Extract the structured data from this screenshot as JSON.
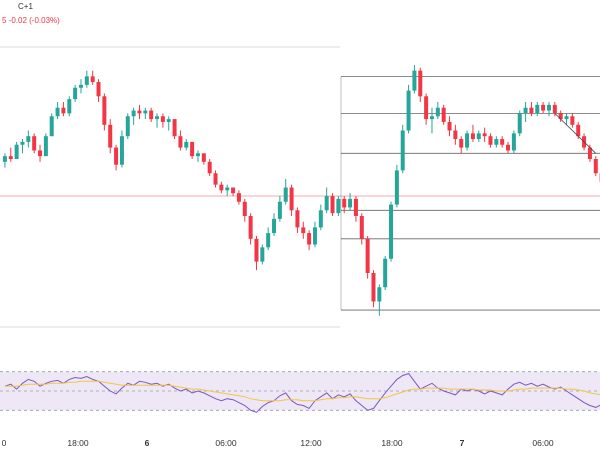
{
  "header": {
    "symbol_fragment": "C+1",
    "change_fragment": "5  -0.02 (-0.03%)"
  },
  "colors": {
    "up": "#26a69a",
    "down": "#f23645",
    "rsi_line": "#7e57c2",
    "rsi_ma": "#f5c542",
    "rsi_band": "#ede7f6",
    "fib_line": "#333333",
    "price_line": "#f7a8ae",
    "grid": "#e0e3eb"
  },
  "chart_data": [
    {
      "type": "candlestick",
      "title": "",
      "xlabel": "",
      "ylabel": "",
      "x_tick_labels": [
        "0",
        "18:00",
        "6",
        "06:00",
        "12:00",
        "18:00",
        "7",
        "06:00"
      ],
      "ylim": [
        0,
        100
      ],
      "note_units": "relative price index 0-100 (no price axis visible)",
      "grid": false,
      "candles": [
        {
          "o": 59,
          "h": 62,
          "l": 57,
          "c": 61
        },
        {
          "o": 61,
          "h": 64,
          "l": 59,
          "c": 60
        },
        {
          "o": 60,
          "h": 66,
          "l": 60,
          "c": 65
        },
        {
          "o": 65,
          "h": 67,
          "l": 62,
          "c": 66
        },
        {
          "o": 66,
          "h": 70,
          "l": 64,
          "c": 68
        },
        {
          "o": 68,
          "h": 69,
          "l": 62,
          "c": 63
        },
        {
          "o": 63,
          "h": 65,
          "l": 59,
          "c": 61
        },
        {
          "o": 61,
          "h": 69,
          "l": 61,
          "c": 68
        },
        {
          "o": 68,
          "h": 76,
          "l": 68,
          "c": 75
        },
        {
          "o": 75,
          "h": 80,
          "l": 74,
          "c": 78
        },
        {
          "o": 78,
          "h": 80,
          "l": 75,
          "c": 76
        },
        {
          "o": 76,
          "h": 82,
          "l": 75,
          "c": 81
        },
        {
          "o": 81,
          "h": 86,
          "l": 80,
          "c": 85
        },
        {
          "o": 85,
          "h": 88,
          "l": 83,
          "c": 86
        },
        {
          "o": 86,
          "h": 91,
          "l": 85,
          "c": 89
        },
        {
          "o": 89,
          "h": 91,
          "l": 86,
          "c": 87
        },
        {
          "o": 87,
          "h": 88,
          "l": 80,
          "c": 82
        },
        {
          "o": 82,
          "h": 83,
          "l": 70,
          "c": 72
        },
        {
          "o": 72,
          "h": 74,
          "l": 62,
          "c": 64
        },
        {
          "o": 64,
          "h": 65,
          "l": 56,
          "c": 58
        },
        {
          "o": 58,
          "h": 70,
          "l": 57,
          "c": 68
        },
        {
          "o": 68,
          "h": 76,
          "l": 67,
          "c": 75
        },
        {
          "o": 75,
          "h": 78,
          "l": 72,
          "c": 77
        },
        {
          "o": 77,
          "h": 79,
          "l": 74,
          "c": 76
        },
        {
          "o": 76,
          "h": 78,
          "l": 74,
          "c": 77
        },
        {
          "o": 77,
          "h": 78,
          "l": 73,
          "c": 74
        },
        {
          "o": 74,
          "h": 76,
          "l": 71,
          "c": 75
        },
        {
          "o": 75,
          "h": 76,
          "l": 71,
          "c": 73
        },
        {
          "o": 73,
          "h": 75,
          "l": 70,
          "c": 74
        },
        {
          "o": 74,
          "h": 74,
          "l": 67,
          "c": 68
        },
        {
          "o": 68,
          "h": 70,
          "l": 63,
          "c": 64
        },
        {
          "o": 64,
          "h": 67,
          "l": 63,
          "c": 66
        },
        {
          "o": 66,
          "h": 66,
          "l": 60,
          "c": 61
        },
        {
          "o": 61,
          "h": 63,
          "l": 59,
          "c": 62
        },
        {
          "o": 62,
          "h": 62,
          "l": 58,
          "c": 59
        },
        {
          "o": 59,
          "h": 60,
          "l": 54,
          "c": 55
        },
        {
          "o": 55,
          "h": 56,
          "l": 50,
          "c": 51
        },
        {
          "o": 51,
          "h": 52,
          "l": 48,
          "c": 49
        },
        {
          "o": 49,
          "h": 51,
          "l": 47,
          "c": 50
        },
        {
          "o": 50,
          "h": 50,
          "l": 47,
          "c": 48
        },
        {
          "o": 48,
          "h": 49,
          "l": 44,
          "c": 45
        },
        {
          "o": 45,
          "h": 46,
          "l": 38,
          "c": 40
        },
        {
          "o": 40,
          "h": 41,
          "l": 30,
          "c": 32
        },
        {
          "o": 32,
          "h": 33,
          "l": 21,
          "c": 24
        },
        {
          "o": 24,
          "h": 30,
          "l": 23,
          "c": 29
        },
        {
          "o": 29,
          "h": 36,
          "l": 28,
          "c": 34
        },
        {
          "o": 34,
          "h": 41,
          "l": 33,
          "c": 39
        },
        {
          "o": 39,
          "h": 47,
          "l": 38,
          "c": 45
        },
        {
          "o": 45,
          "h": 53,
          "l": 44,
          "c": 50
        },
        {
          "o": 50,
          "h": 51,
          "l": 40,
          "c": 42
        },
        {
          "o": 42,
          "h": 43,
          "l": 34,
          "c": 36
        },
        {
          "o": 36,
          "h": 38,
          "l": 32,
          "c": 34
        },
        {
          "o": 34,
          "h": 35,
          "l": 28,
          "c": 30
        },
        {
          "o": 30,
          "h": 38,
          "l": 29,
          "c": 36
        },
        {
          "o": 36,
          "h": 44,
          "l": 35,
          "c": 42
        },
        {
          "o": 42,
          "h": 50,
          "l": 41,
          "c": 47
        },
        {
          "o": 47,
          "h": 48,
          "l": 40,
          "c": 41
        },
        {
          "o": 41,
          "h": 47,
          "l": 40,
          "c": 46
        },
        {
          "o": 46,
          "h": 47,
          "l": 41,
          "c": 43
        },
        {
          "o": 43,
          "h": 48,
          "l": 42,
          "c": 46
        },
        {
          "o": 46,
          "h": 47,
          "l": 38,
          "c": 40
        },
        {
          "o": 40,
          "h": 41,
          "l": 30,
          "c": 32
        },
        {
          "o": 32,
          "h": 33,
          "l": 18,
          "c": 20
        },
        {
          "o": 20,
          "h": 21,
          "l": 8,
          "c": 10
        },
        {
          "o": 10,
          "h": 16,
          "l": 5,
          "c": 15
        },
        {
          "o": 15,
          "h": 26,
          "l": 14,
          "c": 25
        },
        {
          "o": 25,
          "h": 45,
          "l": 24,
          "c": 44
        },
        {
          "o": 44,
          "h": 58,
          "l": 43,
          "c": 56
        },
        {
          "o": 56,
          "h": 72,
          "l": 55,
          "c": 70
        },
        {
          "o": 70,
          "h": 86,
          "l": 69,
          "c": 84
        },
        {
          "o": 84,
          "h": 93,
          "l": 83,
          "c": 91
        },
        {
          "o": 91,
          "h": 92,
          "l": 80,
          "c": 82
        },
        {
          "o": 82,
          "h": 83,
          "l": 72,
          "c": 74
        },
        {
          "o": 74,
          "h": 78,
          "l": 69,
          "c": 75
        },
        {
          "o": 75,
          "h": 80,
          "l": 74,
          "c": 78
        },
        {
          "o": 78,
          "h": 79,
          "l": 72,
          "c": 73
        },
        {
          "o": 73,
          "h": 75,
          "l": 68,
          "c": 70
        },
        {
          "o": 70,
          "h": 72,
          "l": 65,
          "c": 67
        },
        {
          "o": 67,
          "h": 68,
          "l": 62,
          "c": 64
        },
        {
          "o": 64,
          "h": 70,
          "l": 63,
          "c": 69
        },
        {
          "o": 69,
          "h": 72,
          "l": 66,
          "c": 67
        },
        {
          "o": 67,
          "h": 70,
          "l": 66,
          "c": 69
        },
        {
          "o": 69,
          "h": 71,
          "l": 66,
          "c": 68
        },
        {
          "o": 68,
          "h": 69,
          "l": 64,
          "c": 65
        },
        {
          "o": 65,
          "h": 68,
          "l": 64,
          "c": 67
        },
        {
          "o": 67,
          "h": 68,
          "l": 64,
          "c": 65
        },
        {
          "o": 65,
          "h": 66,
          "l": 62,
          "c": 63
        },
        {
          "o": 63,
          "h": 70,
          "l": 62,
          "c": 69
        },
        {
          "o": 69,
          "h": 77,
          "l": 68,
          "c": 76
        },
        {
          "o": 76,
          "h": 80,
          "l": 73,
          "c": 78
        },
        {
          "o": 78,
          "h": 80,
          "l": 75,
          "c": 76
        },
        {
          "o": 76,
          "h": 80,
          "l": 75,
          "c": 79
        },
        {
          "o": 79,
          "h": 80,
          "l": 76,
          "c": 77
        },
        {
          "o": 77,
          "h": 80,
          "l": 75,
          "c": 79
        },
        {
          "o": 79,
          "h": 80,
          "l": 75,
          "c": 76
        },
        {
          "o": 76,
          "h": 77,
          "l": 73,
          "c": 74
        },
        {
          "o": 74,
          "h": 76,
          "l": 72,
          "c": 75
        },
        {
          "o": 75,
          "h": 76,
          "l": 71,
          "c": 72
        },
        {
          "o": 72,
          "h": 73,
          "l": 67,
          "c": 68
        },
        {
          "o": 68,
          "h": 69,
          "l": 63,
          "c": 64
        },
        {
          "o": 64,
          "h": 65,
          "l": 59,
          "c": 60
        },
        {
          "o": 60,
          "h": 61,
          "l": 54,
          "c": 55
        },
        {
          "o": 55,
          "h": 56,
          "l": 50,
          "c": 52
        },
        {
          "o": 52,
          "h": 55,
          "l": 48,
          "c": 53
        }
      ],
      "current_price_level": 47,
      "fibonacci_levels": [
        89,
        76,
        62,
        42,
        32,
        7
      ],
      "trendline": {
        "start_candle": 94,
        "start_value": 76,
        "end_candle": 101,
        "end_value": 62
      }
    },
    {
      "type": "line",
      "title": "",
      "name": "RSI",
      "ylim": [
        20,
        80
      ],
      "band": [
        30,
        70
      ],
      "middle_line": 50,
      "series": [
        {
          "values": [
            55,
            57,
            52,
            58,
            62,
            60,
            55,
            58,
            60,
            61,
            58,
            62,
            64,
            63,
            65,
            62,
            60,
            55,
            50,
            47,
            53,
            58,
            56,
            60,
            59,
            57,
            58,
            55,
            57,
            53,
            50,
            52,
            48,
            50,
            48,
            45,
            42,
            40,
            42,
            41,
            38,
            35,
            30,
            28,
            34,
            38,
            40,
            45,
            48,
            40,
            36,
            35,
            32,
            40,
            44,
            48,
            42,
            46,
            44,
            47,
            40,
            35,
            30,
            32,
            40,
            48,
            55,
            62,
            66,
            68,
            60,
            52,
            55,
            58,
            53,
            50,
            48,
            46,
            52,
            50,
            52,
            50,
            47,
            50,
            48,
            46,
            52,
            57,
            59,
            56,
            58,
            55,
            57,
            54,
            52,
            54,
            50,
            46,
            42,
            38,
            35,
            33,
            36
          ]
        },
        {
          "values": [
            55,
            55,
            55,
            56,
            57,
            57,
            57,
            57,
            58,
            58,
            58,
            59,
            59,
            60,
            60,
            60,
            60,
            59,
            58,
            57,
            56,
            56,
            56,
            56,
            56,
            56,
            56,
            56,
            56,
            55,
            54,
            53,
            52,
            52,
            51,
            50,
            49,
            48,
            47,
            46,
            45,
            44,
            42,
            41,
            40,
            40,
            40,
            40,
            41,
            41,
            41,
            40,
            40,
            40,
            41,
            42,
            42,
            43,
            43,
            44,
            44,
            43,
            42,
            42,
            42,
            43,
            45,
            47,
            49,
            51,
            52,
            52,
            53,
            53,
            53,
            53,
            52,
            52,
            52,
            52,
            52,
            51,
            51,
            51,
            50,
            50,
            50,
            51,
            52,
            52,
            53,
            53,
            53,
            53,
            53,
            53,
            52,
            52,
            51,
            50,
            48,
            47,
            46
          ]
        }
      ]
    }
  ]
}
